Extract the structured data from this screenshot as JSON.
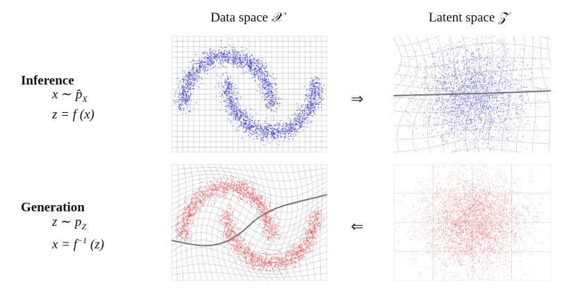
{
  "headers": {
    "data_space_text": "Data space ",
    "data_space_symbol": "𝒳",
    "latent_space_text": "Latent space ",
    "latent_space_symbol": "𝒵"
  },
  "inference": {
    "title": "Inference",
    "eq1_lhs": "x ∼ ",
    "eq1_rhs": "p̂",
    "eq1_sub": "X",
    "eq2": "z = f (x)",
    "arrow": "⇒"
  },
  "generation": {
    "title": "Generation",
    "eq1_lhs": "z ∼ p",
    "eq1_sub": "Z",
    "eq2_lhs": "x = f",
    "eq2_sup": "−1",
    "eq2_rhs": " (z)",
    "arrow": "⇐"
  },
  "colors": {
    "grid": "#c8c8c8",
    "blue_points": "#3a3ad8",
    "red_points": "#e84848",
    "axis_line": "#777777"
  }
}
